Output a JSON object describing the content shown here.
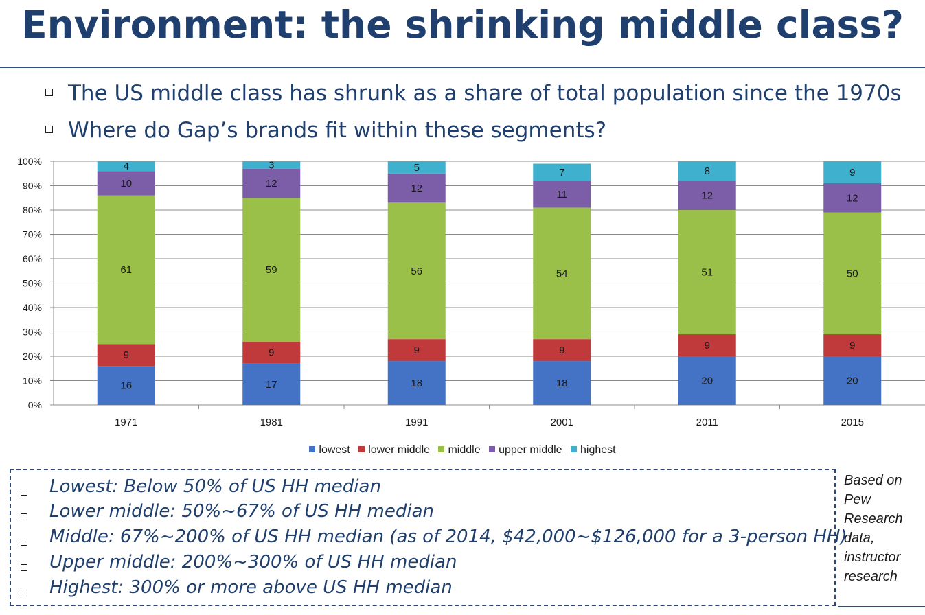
{
  "slide": {
    "title": "Environment: the shrinking middle class?",
    "bullets": [
      "The US middle class has shrunk as a share of total population since the 1970s",
      "Where do Gap’s brands fit within these segments?"
    ],
    "definitions": [
      "Lowest: Below 50% of US HH median",
      "Lower middle: 50%~67% of US HH median",
      "Middle: 67%~200% of US HH median (as of 2014, $42,000~$126,000 for a 3-person HH)",
      "Upper middle: 200%~300% of US HH median",
      "Highest: 300% or more above US HH median"
    ],
    "source": [
      "Based on",
      "Pew",
      "Research",
      "data,",
      "instructor",
      "research"
    ]
  },
  "chart_data": {
    "type": "bar",
    "stacked": true,
    "percent": true,
    "categories": [
      "1971",
      "1981",
      "1991",
      "2001",
      "2011",
      "2015"
    ],
    "series": [
      {
        "name": "lowest",
        "color": "#4472c4",
        "values": [
          16,
          17,
          18,
          18,
          20,
          20
        ]
      },
      {
        "name": "lower middle",
        "color": "#c0393b",
        "values": [
          9,
          9,
          9,
          9,
          9,
          9
        ]
      },
      {
        "name": "middle",
        "color": "#9bc04a",
        "values": [
          61,
          59,
          56,
          54,
          51,
          50
        ]
      },
      {
        "name": "upper middle",
        "color": "#7b5ea7",
        "values": [
          10,
          12,
          12,
          11,
          12,
          12
        ]
      },
      {
        "name": "highest",
        "color": "#3fb1cf",
        "values": [
          4,
          3,
          5,
          7,
          8,
          9
        ]
      }
    ],
    "ylim": [
      0,
      100
    ],
    "yticks": [
      "0%",
      "10%",
      "20%",
      "30%",
      "40%",
      "50%",
      "60%",
      "70%",
      "80%",
      "90%",
      "100%"
    ],
    "legend_position": "bottom",
    "grid": true
  }
}
